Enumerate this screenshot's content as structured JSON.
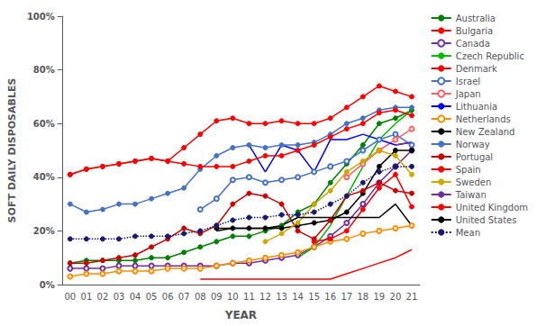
{
  "chart_data": {
    "type": "line",
    "xlabel": "YEAR",
    "ylabel": "SOFT DAILY DISPOSABLES",
    "categories": [
      "00",
      "01",
      "02",
      "03",
      "04",
      "05",
      "06",
      "07",
      "08",
      "09",
      "10",
      "11",
      "12",
      "13",
      "14",
      "15",
      "16",
      "17",
      "18",
      "19",
      "20",
      "21"
    ],
    "ylim": [
      0,
      1.0
    ],
    "yticks": [
      {
        "value": 0.0,
        "label": "0%"
      },
      {
        "value": 0.2,
        "label": "20%"
      },
      {
        "value": 0.4,
        "label": "40%"
      },
      {
        "value": 0.6,
        "label": "60%"
      },
      {
        "value": 0.8,
        "label": "80%"
      },
      {
        "value": 1.0,
        "label": "100%"
      }
    ],
    "grid": false,
    "legend": "right",
    "series": [
      {
        "name": "Australia",
        "color": "#008000",
        "marker": "circle",
        "line_style": "solid",
        "values": [
          0.08,
          0.09,
          0.09,
          0.09,
          0.09,
          0.1,
          0.1,
          0.12,
          0.14,
          0.16,
          0.18,
          0.18,
          0.2,
          0.22,
          0.27,
          0.3,
          0.38,
          0.45,
          0.52,
          0.6,
          0.62,
          0.65
        ]
      },
      {
        "name": "Bulgaria",
        "color": "#ff0000",
        "marker": "none",
        "line_style": "solid",
        "values": [
          null,
          null,
          null,
          null,
          null,
          null,
          null,
          null,
          0.02,
          0.02,
          0.02,
          0.02,
          0.02,
          0.02,
          0.02,
          0.02,
          0.02,
          0.04,
          0.06,
          0.08,
          0.1,
          0.13
        ]
      },
      {
        "name": "Canada",
        "color": "#7030a0",
        "marker": "open circle",
        "line_style": "solid",
        "values": [
          0.06,
          0.06,
          0.06,
          0.07,
          0.07,
          0.07,
          0.07,
          0.07,
          0.07,
          0.07,
          0.08,
          0.08,
          0.09,
          0.1,
          0.11,
          0.14,
          0.18,
          0.23,
          0.3,
          0.38,
          0.44,
          0.5
        ]
      },
      {
        "name": "Czech Republic",
        "color": "#00bb00",
        "marker": "none",
        "line_style": "solid",
        "values": [
          null,
          null,
          null,
          null,
          null,
          null,
          null,
          null,
          null,
          null,
          null,
          null,
          null,
          null,
          0.1,
          0.14,
          0.22,
          0.33,
          0.44,
          0.54,
          0.6,
          0.65
        ]
      },
      {
        "name": "Denmark",
        "color": "#ff0000",
        "marker": "circle",
        "line_style": "solid",
        "values": [
          0.41,
          0.43,
          0.44,
          0.45,
          0.46,
          0.47,
          0.46,
          0.51,
          0.56,
          0.61,
          0.62,
          0.6,
          0.6,
          0.61,
          0.6,
          0.6,
          0.62,
          0.66,
          0.7,
          0.74,
          0.72,
          0.7
        ]
      },
      {
        "name": "Israel",
        "color": "#4472c4",
        "marker": "open circle",
        "line_style": "solid",
        "values": [
          null,
          null,
          null,
          null,
          null,
          null,
          null,
          null,
          0.28,
          0.32,
          0.39,
          0.4,
          0.38,
          0.39,
          0.4,
          0.42,
          0.44,
          0.46,
          0.5,
          0.54,
          0.56,
          0.52
        ]
      },
      {
        "name": "Japan",
        "color": "#ff6060",
        "marker": "open circle",
        "line_style": "solid",
        "values": [
          null,
          null,
          null,
          null,
          null,
          null,
          null,
          null,
          null,
          null,
          null,
          null,
          null,
          null,
          null,
          null,
          null,
          0.4,
          0.45,
          0.5,
          0.54,
          0.58
        ]
      },
      {
        "name": "Lithuania",
        "color": "#0000ff",
        "marker": "none",
        "line_style": "solid",
        "values": [
          null,
          null,
          null,
          null,
          null,
          null,
          null,
          null,
          null,
          null,
          null,
          0.52,
          0.42,
          0.52,
          0.5,
          0.42,
          0.54,
          0.54,
          0.56,
          0.54,
          0.52,
          0.53
        ]
      },
      {
        "name": "Netherlands",
        "color": "#ff8c00",
        "marker": "open circle",
        "line_style": "solid",
        "values": [
          0.03,
          0.04,
          0.04,
          0.05,
          0.05,
          0.05,
          0.06,
          0.06,
          0.06,
          0.07,
          0.08,
          0.09,
          0.1,
          0.11,
          0.12,
          0.14,
          0.16,
          0.17,
          0.19,
          0.2,
          0.21,
          0.22
        ]
      },
      {
        "name": "New Zealand",
        "color": "#000000",
        "marker": "circle",
        "line_style": "solid",
        "values": [
          null,
          null,
          null,
          null,
          null,
          null,
          null,
          null,
          null,
          0.21,
          0.21,
          0.21,
          0.21,
          0.21,
          0.22,
          0.23,
          0.24,
          0.27,
          0.34,
          0.44,
          0.5,
          0.5
        ]
      },
      {
        "name": "Norway",
        "color": "#4472c4",
        "marker": "circle",
        "line_style": "solid",
        "values": [
          0.3,
          0.27,
          0.28,
          0.3,
          0.3,
          0.32,
          0.34,
          0.36,
          0.43,
          0.48,
          0.51,
          0.52,
          0.51,
          0.52,
          0.52,
          0.53,
          0.56,
          0.6,
          0.62,
          0.65,
          0.66,
          0.66
        ]
      },
      {
        "name": "Portugal",
        "color": "#cc0000",
        "marker": "circle",
        "line_style": "solid",
        "values": [
          0.08,
          0.08,
          0.09,
          0.1,
          0.11,
          0.14,
          0.17,
          0.21,
          0.19,
          0.22,
          0.3,
          0.34,
          0.33,
          0.3,
          0.2,
          0.17,
          0.24,
          0.33,
          0.35,
          0.38,
          0.35,
          0.34
        ]
      },
      {
        "name": "Spain",
        "color": "#ff0000",
        "marker": "circle",
        "line_style": "solid",
        "values": [
          null,
          null,
          null,
          null,
          null,
          null,
          null,
          null,
          null,
          null,
          null,
          null,
          null,
          null,
          null,
          0.16,
          0.17,
          0.2,
          0.28,
          0.36,
          0.41,
          0.29
        ]
      },
      {
        "name": "Sweden",
        "color": "#ccaa00",
        "marker": "circle",
        "line_style": "solid",
        "values": [
          null,
          null,
          null,
          null,
          null,
          null,
          null,
          null,
          null,
          null,
          null,
          null,
          0.16,
          0.19,
          0.23,
          0.3,
          0.35,
          0.42,
          0.46,
          0.5,
          0.48,
          0.41
        ]
      },
      {
        "name": "Taiwan",
        "color": "#7030a0",
        "marker": "none",
        "line_style": "solid",
        "values": [
          null,
          null,
          null,
          null,
          null,
          null,
          null,
          null,
          null,
          null,
          null,
          null,
          null,
          null,
          null,
          null,
          null,
          null,
          null,
          null,
          0.52,
          0.53
        ]
      },
      {
        "name": "United Kingdom",
        "color": "#ff0000",
        "marker": "circle",
        "line_style": "solid",
        "values": [
          0.41,
          0.43,
          0.44,
          0.45,
          0.46,
          0.47,
          0.46,
          0.45,
          0.44,
          0.44,
          0.44,
          0.46,
          0.48,
          0.48,
          0.5,
          0.52,
          0.55,
          0.58,
          0.6,
          0.64,
          0.65,
          0.63
        ]
      },
      {
        "name": "United States",
        "color": "#000000",
        "marker": "none",
        "line_style": "solid",
        "values": [
          null,
          null,
          null,
          null,
          null,
          null,
          null,
          null,
          null,
          0.2,
          0.21,
          0.21,
          0.21,
          0.22,
          0.25,
          0.25,
          0.25,
          0.25,
          0.25,
          0.25,
          0.3,
          0.22
        ]
      },
      {
        "name": "Mean",
        "color": "#191970",
        "marker": "circle",
        "line_style": "dotted",
        "values": [
          0.17,
          0.17,
          0.17,
          0.17,
          0.18,
          0.18,
          0.18,
          0.19,
          0.2,
          0.22,
          0.24,
          0.25,
          0.25,
          0.26,
          0.26,
          0.27,
          0.3,
          0.33,
          0.38,
          0.42,
          0.44,
          0.44
        ]
      }
    ]
  }
}
